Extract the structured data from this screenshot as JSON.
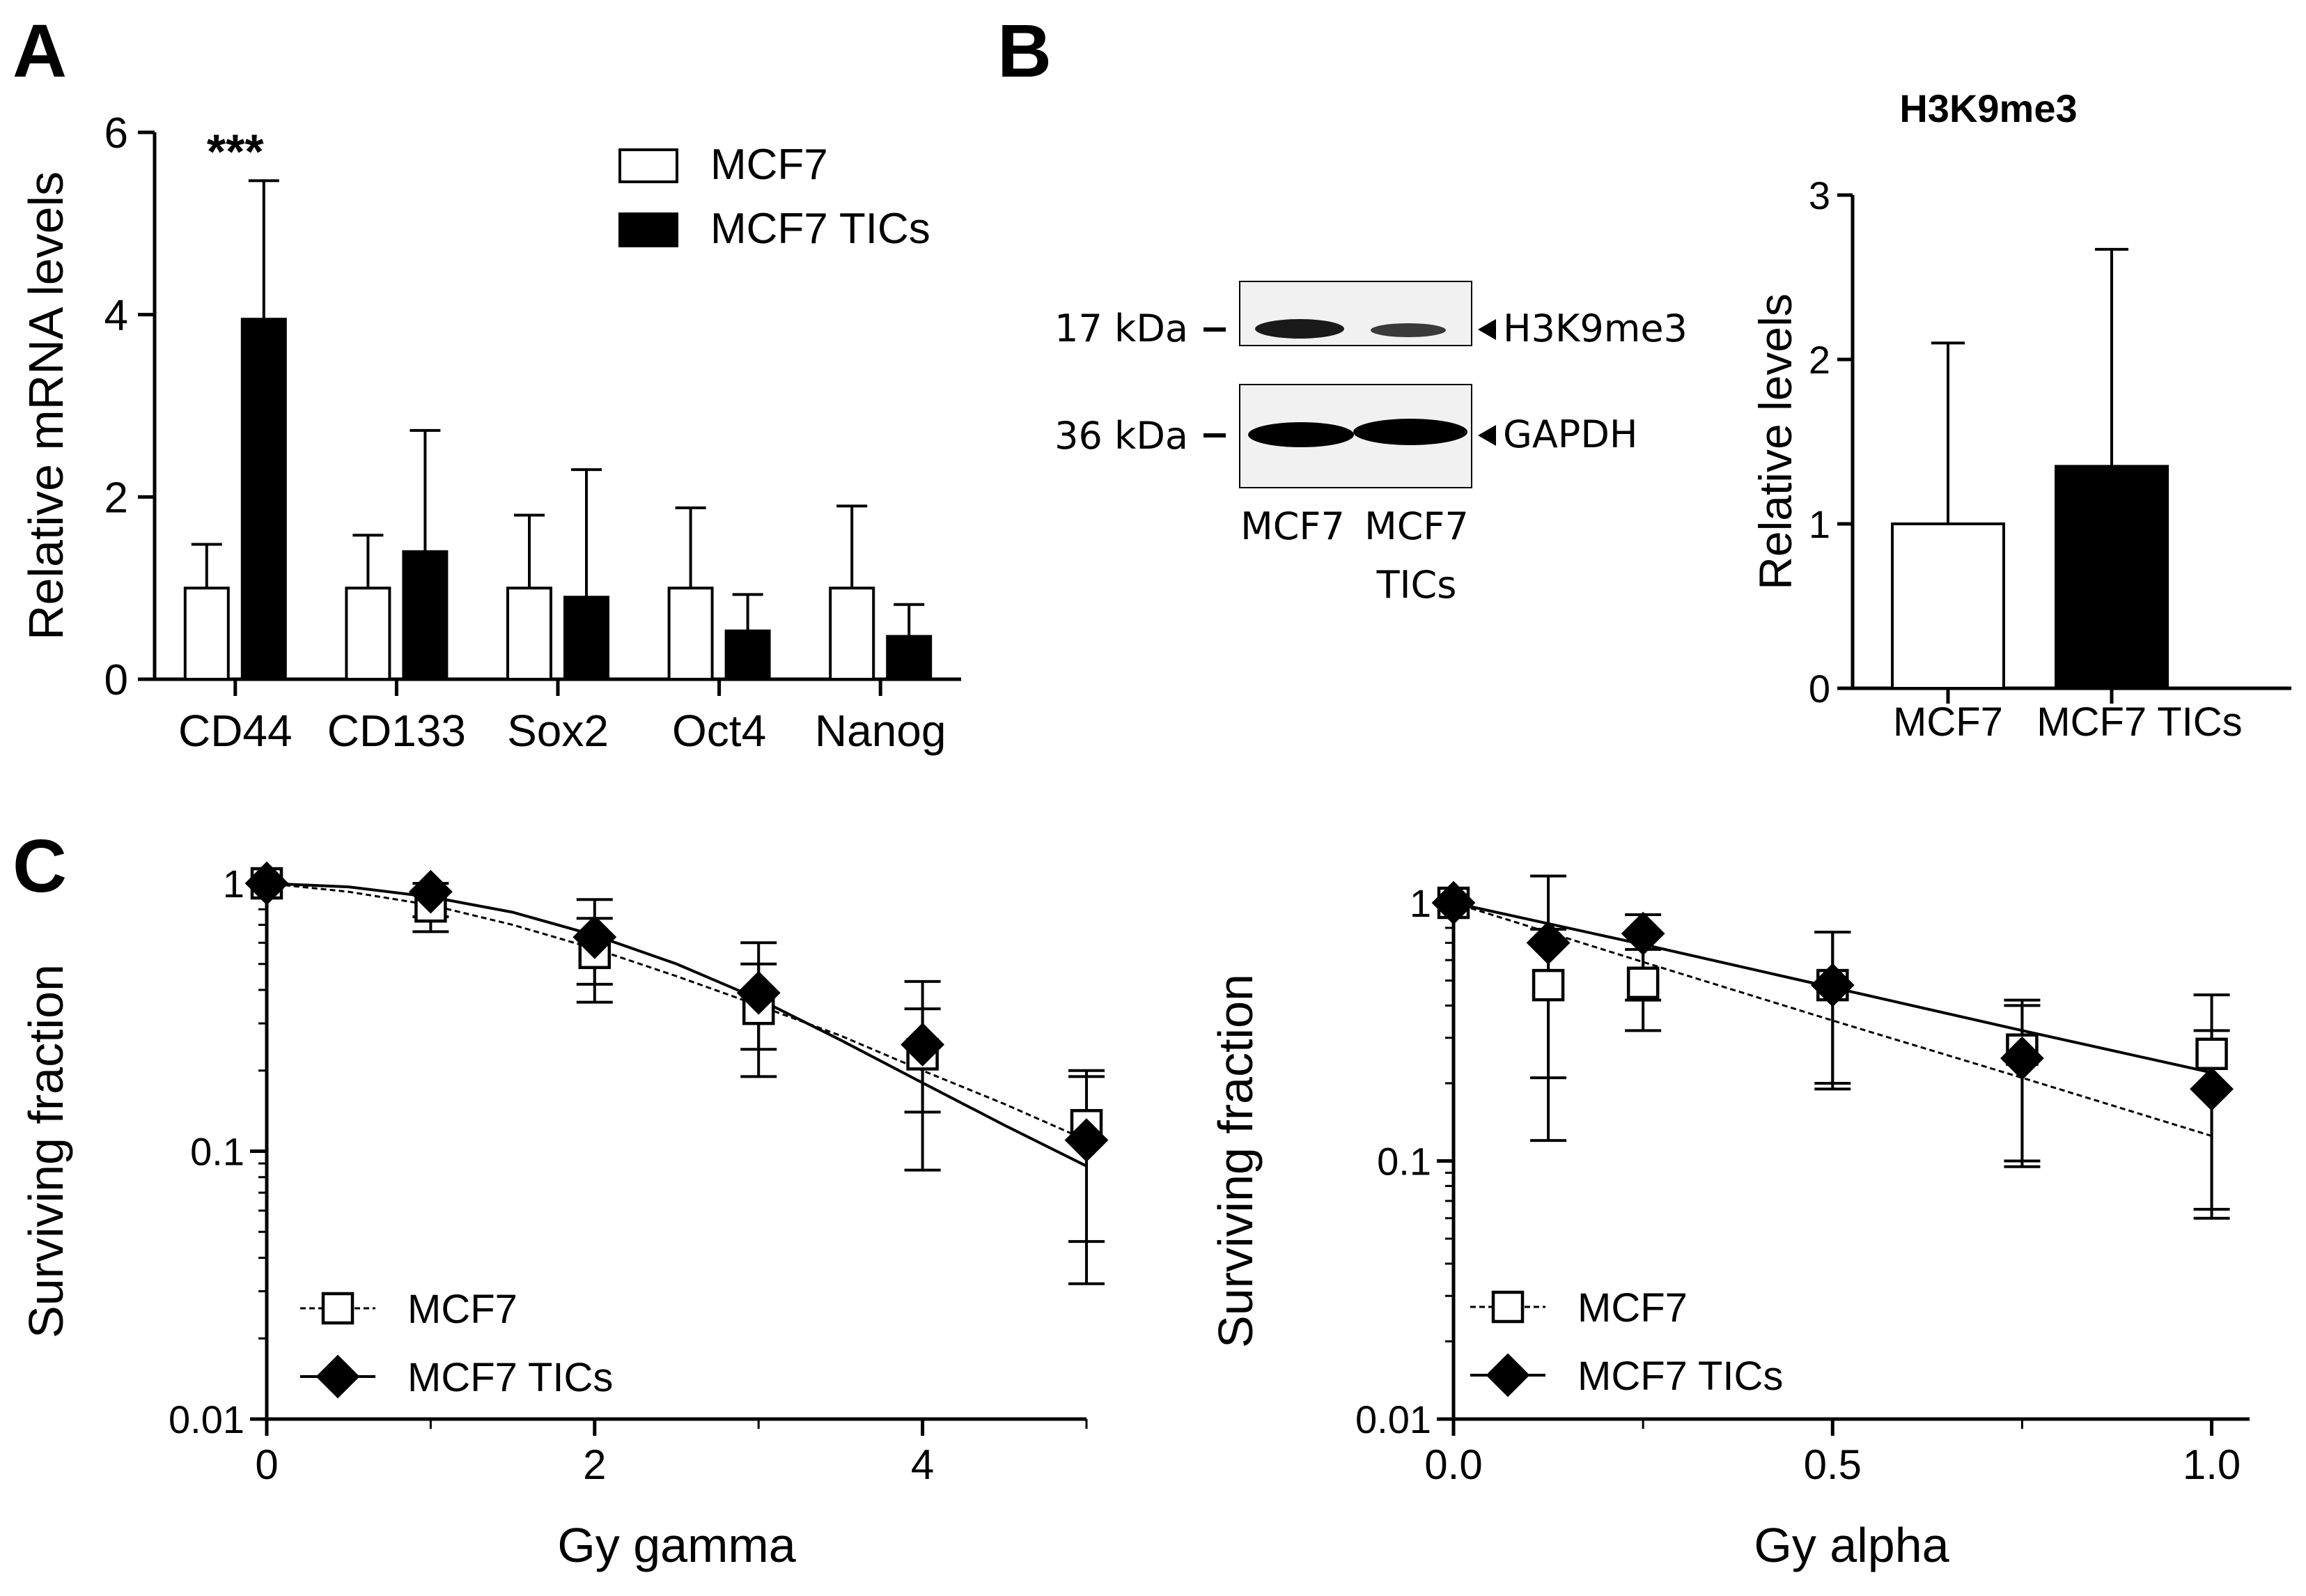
{
  "panel_labels": {
    "a": "A",
    "b": "B",
    "c": "C"
  },
  "chart_data": [
    {
      "id": "A",
      "type": "bar",
      "title": "",
      "ylabel": "Relative mRNA levels",
      "xlabel": "",
      "ylim": [
        0,
        6
      ],
      "yticks": [
        0,
        2,
        4,
        6
      ],
      "categories": [
        "CD44",
        "CD133",
        "Sox2",
        "Oct4",
        "Nanog"
      ],
      "series": [
        {
          "name": "MCF7",
          "fill": "#ffffff",
          "values": [
            1.0,
            1.0,
            1.0,
            1.0,
            1.0
          ],
          "err": [
            0.48,
            0.58,
            0.8,
            0.88,
            0.9
          ]
        },
        {
          "name": "MCF7 TICs",
          "fill": "#000000",
          "values": [
            3.95,
            1.4,
            0.9,
            0.53,
            0.47
          ],
          "err": [
            1.52,
            1.33,
            1.4,
            0.4,
            0.35
          ]
        }
      ],
      "annotations": [
        {
          "text": "***",
          "category": "CD44"
        }
      ],
      "legend": "top-right"
    },
    {
      "id": "B-bar",
      "type": "bar",
      "title": "H3K9me3",
      "ylabel": "Relative levels",
      "xlabel": "",
      "ylim": [
        0,
        3
      ],
      "yticks": [
        0,
        1,
        2,
        3
      ],
      "categories": [
        "MCF7",
        "MCF7 TICs"
      ],
      "series": [
        {
          "name": "Relative levels",
          "values": [
            1.0,
            1.35
          ],
          "err": [
            1.1,
            1.32
          ],
          "fills": [
            "#ffffff",
            "#000000"
          ]
        }
      ]
    },
    {
      "id": "C-gamma",
      "type": "scatter",
      "ylabel": "Surviving fraction",
      "xlabel": "Gy gamma",
      "yscale": "log",
      "ylim": [
        0.01,
        1
      ],
      "yticks": [
        0.01,
        0.1,
        1
      ],
      "yticklabels": [
        "0.01",
        "0.1",
        "1"
      ],
      "xlim": [
        0,
        5
      ],
      "xticks": [
        0,
        2,
        4
      ],
      "xticklabels": [
        "0",
        "2",
        "4"
      ],
      "series": [
        {
          "name": "MCF7",
          "marker": "open-square",
          "line": "dashed",
          "x": [
            0,
            1,
            2,
            3,
            4,
            5
          ],
          "y": [
            1.0,
            0.82,
            0.55,
            0.34,
            0.23,
            0.125
          ],
          "err_low": [
            1.0,
            0.66,
            0.36,
            0.19,
            0.085,
            0.032
          ],
          "err_high": [
            1.0,
            0.94,
            0.74,
            0.5,
            0.34,
            0.2
          ],
          "fit_x": [
            0,
            0.5,
            1,
            1.5,
            2,
            2.5,
            3,
            3.5,
            4,
            4.5,
            5
          ],
          "fit_y": [
            1.0,
            0.93,
            0.83,
            0.7,
            0.57,
            0.45,
            0.35,
            0.27,
            0.2,
            0.15,
            0.11
          ]
        },
        {
          "name": "MCF7 TICs",
          "marker": "filled-diamond",
          "line": "solid",
          "x": [
            0,
            1,
            2,
            3,
            4,
            5
          ],
          "y": [
            1.0,
            0.93,
            0.63,
            0.39,
            0.25,
            0.11
          ],
          "err_low": [
            1.0,
            0.75,
            0.42,
            0.24,
            0.14,
            0.046
          ],
          "err_high": [
            1.0,
            1.0,
            0.87,
            0.6,
            0.43,
            0.19
          ],
          "fit_x": [
            0,
            0.5,
            1,
            1.5,
            2,
            2.5,
            3,
            3.5,
            4,
            4.5,
            5
          ],
          "fit_y": [
            1.0,
            0.97,
            0.89,
            0.78,
            0.64,
            0.5,
            0.37,
            0.26,
            0.18,
            0.125,
            0.088
          ]
        }
      ],
      "legend": "bottom-left"
    },
    {
      "id": "C-alpha",
      "type": "scatter",
      "ylabel": "Surviving fraction",
      "xlabel": "Gy alpha",
      "yscale": "log",
      "ylim": [
        0.01,
        1
      ],
      "yticks": [
        0.01,
        0.1,
        1
      ],
      "yticklabels": [
        "0.01",
        "0.1",
        "1"
      ],
      "xlim": [
        0,
        1.05
      ],
      "xticks": [
        0,
        0.5,
        1
      ],
      "xticklabels": [
        "0.0",
        "0.5",
        "1.0"
      ],
      "series": [
        {
          "name": "MCF7",
          "marker": "open-square",
          "line": "dashed",
          "x": [
            0,
            0.125,
            0.25,
            0.5,
            0.75,
            1.0
          ],
          "y": [
            1.0,
            0.48,
            0.49,
            0.48,
            0.27,
            0.26
          ],
          "err_low": [
            1.0,
            0.21,
            0.32,
            0.19,
            0.095,
            0.065
          ],
          "err_high": [
            1.0,
            0.79,
            0.66,
            0.77,
            0.4,
            0.32
          ],
          "fit_x": [
            0,
            0.25,
            0.5,
            0.75,
            1.0
          ],
          "fit_y": [
            1.0,
            0.59,
            0.35,
            0.21,
            0.125
          ]
        },
        {
          "name": "MCF7 TICs",
          "marker": "filled-diamond",
          "line": "solid",
          "x": [
            0,
            0.125,
            0.25,
            0.5,
            0.75,
            1.0
          ],
          "y": [
            1.0,
            0.7,
            0.76,
            0.48,
            0.25,
            0.19
          ],
          "err_low": [
            1.0,
            0.12,
            0.42,
            0.2,
            0.1,
            0.06
          ],
          "err_high": [
            1.0,
            1.27,
            0.9,
            0.77,
            0.42,
            0.44
          ],
          "fit_x": [
            0,
            0.25,
            0.5,
            0.75,
            1.0
          ],
          "fit_y": [
            1.0,
            0.69,
            0.47,
            0.32,
            0.22
          ]
        }
      ],
      "legend": "bottom-left"
    }
  ],
  "western_blot": {
    "bands": [
      {
        "marker": "17 kDa",
        "target": "H3K9me3"
      },
      {
        "marker": "36 kDa",
        "target": "GAPDH"
      }
    ],
    "lanes": [
      {
        "line1": "MCF7",
        "line2": ""
      },
      {
        "line1": "MCF7",
        "line2": "TICs"
      }
    ]
  },
  "colors": {
    "ink": "#000000",
    "paper": "#ffffff",
    "blot_bg": "#f1f1f1"
  }
}
